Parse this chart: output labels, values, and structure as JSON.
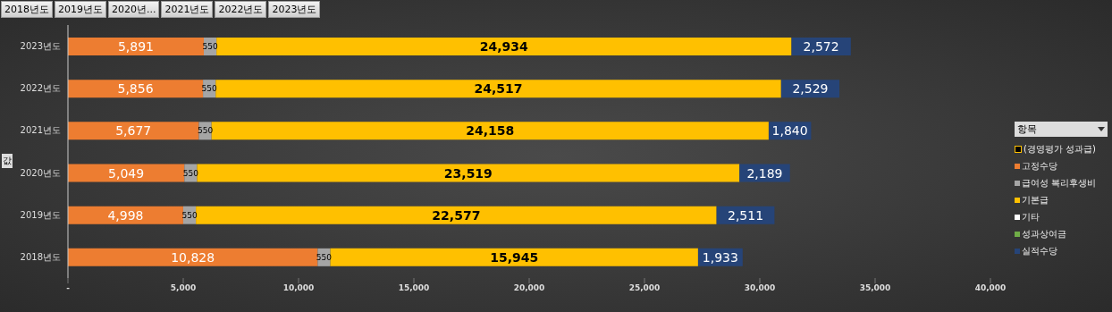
{
  "chart_data": {
    "type": "bar",
    "orientation": "horizontal",
    "stacked": true,
    "ylabel": "값",
    "legend_title": "항목",
    "legend": "right",
    "grid": false,
    "annotations": [
      "2018년도",
      "2019년도",
      "2020년...",
      "2021년도",
      "2022년도",
      "2023년도"
    ],
    "categories": [
      "2023년도",
      "2022년도",
      "2021년도",
      "2020년도",
      "2019년도",
      "2018년도"
    ],
    "xlim": [
      0,
      40000
    ],
    "xticks": [
      {
        "value": 0,
        "label": "-"
      },
      {
        "value": 5000,
        "label": "5,000"
      },
      {
        "value": 10000,
        "label": "10,000"
      },
      {
        "value": 15000,
        "label": "15,000"
      },
      {
        "value": 20000,
        "label": "20,000"
      },
      {
        "value": 25000,
        "label": "25,000"
      },
      {
        "value": 30000,
        "label": "30,000"
      },
      {
        "value": 35000,
        "label": "35,000"
      },
      {
        "value": 40000,
        "label": "40,000"
      }
    ],
    "series": [
      {
        "name": "(경영평가 성과급)",
        "color": "#000000",
        "values": [
          0,
          0,
          0,
          0,
          0,
          0
        ]
      },
      {
        "name": "고정수당",
        "color": "#ed7d31",
        "values": [
          5891,
          5856,
          5677,
          5049,
          4998,
          10828
        ],
        "value_labels": [
          "5,891",
          "5,856",
          "5,677",
          "5,049",
          "4,998",
          "10,828"
        ]
      },
      {
        "name": "급여성 복리후생비",
        "color": "#a5a5a5",
        "values": [
          550,
          550,
          550,
          550,
          550,
          550
        ],
        "value_labels": [
          "550",
          "550",
          "550",
          "550",
          "550",
          "550"
        ]
      },
      {
        "name": "기본급",
        "color": "#ffc000",
        "values": [
          24934,
          24517,
          24158,
          23519,
          22577,
          15945
        ],
        "value_labels": [
          "24,934",
          "24,517",
          "24,158",
          "23,519",
          "22,577",
          "15,945"
        ]
      },
      {
        "name": "기타",
        "color": "#ffffff",
        "values": [
          0,
          0,
          0,
          0,
          0,
          0
        ]
      },
      {
        "name": "성과상여금",
        "color": "#70ad47",
        "values": [
          0,
          0,
          0,
          0,
          0,
          0
        ]
      },
      {
        "name": "실적수당",
        "color": "#264478",
        "values": [
          2572,
          2529,
          1840,
          2189,
          2511,
          1933
        ],
        "value_labels": [
          "2,572",
          "2,529",
          "1,840",
          "2,189",
          "2,511",
          "1,933"
        ]
      }
    ]
  }
}
